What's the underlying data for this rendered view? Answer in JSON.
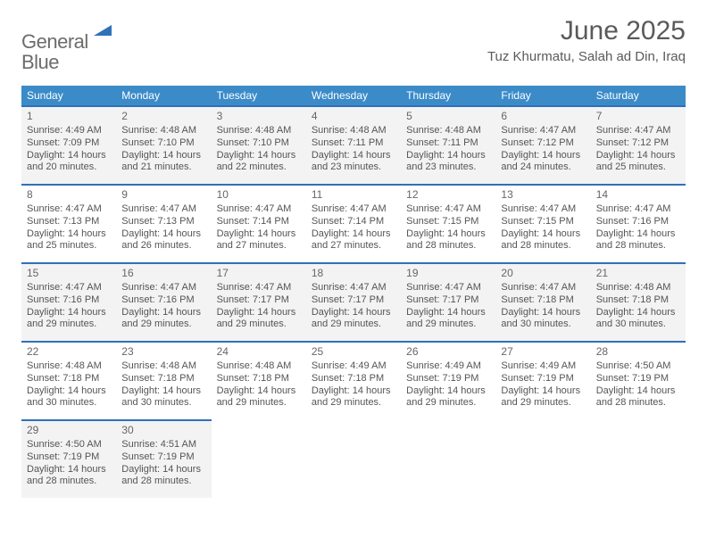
{
  "logo": {
    "word1": "General",
    "word2": "Blue"
  },
  "title": "June 2025",
  "location": "Tuz Khurmatu, Salah ad Din, Iraq",
  "colors": {
    "header_bg": "#3b8bc9",
    "rule": "#2f71b8",
    "shade": "#f3f3f3",
    "logo_gray": "#6c6c6c",
    "logo_blue": "#2f71b8",
    "text": "#555"
  },
  "weekdays": [
    "Sunday",
    "Monday",
    "Tuesday",
    "Wednesday",
    "Thursday",
    "Friday",
    "Saturday"
  ],
  "weeks": [
    {
      "shaded": true,
      "days": [
        {
          "n": "1",
          "sunrise": "4:49 AM",
          "sunset": "7:09 PM",
          "dl1": "Daylight: 14 hours",
          "dl2": "and 20 minutes."
        },
        {
          "n": "2",
          "sunrise": "4:48 AM",
          "sunset": "7:10 PM",
          "dl1": "Daylight: 14 hours",
          "dl2": "and 21 minutes."
        },
        {
          "n": "3",
          "sunrise": "4:48 AM",
          "sunset": "7:10 PM",
          "dl1": "Daylight: 14 hours",
          "dl2": "and 22 minutes."
        },
        {
          "n": "4",
          "sunrise": "4:48 AM",
          "sunset": "7:11 PM",
          "dl1": "Daylight: 14 hours",
          "dl2": "and 23 minutes."
        },
        {
          "n": "5",
          "sunrise": "4:48 AM",
          "sunset": "7:11 PM",
          "dl1": "Daylight: 14 hours",
          "dl2": "and 23 minutes."
        },
        {
          "n": "6",
          "sunrise": "4:47 AM",
          "sunset": "7:12 PM",
          "dl1": "Daylight: 14 hours",
          "dl2": "and 24 minutes."
        },
        {
          "n": "7",
          "sunrise": "4:47 AM",
          "sunset": "7:12 PM",
          "dl1": "Daylight: 14 hours",
          "dl2": "and 25 minutes."
        }
      ]
    },
    {
      "shaded": false,
      "days": [
        {
          "n": "8",
          "sunrise": "4:47 AM",
          "sunset": "7:13 PM",
          "dl1": "Daylight: 14 hours",
          "dl2": "and 25 minutes."
        },
        {
          "n": "9",
          "sunrise": "4:47 AM",
          "sunset": "7:13 PM",
          "dl1": "Daylight: 14 hours",
          "dl2": "and 26 minutes."
        },
        {
          "n": "10",
          "sunrise": "4:47 AM",
          "sunset": "7:14 PM",
          "dl1": "Daylight: 14 hours",
          "dl2": "and 27 minutes."
        },
        {
          "n": "11",
          "sunrise": "4:47 AM",
          "sunset": "7:14 PM",
          "dl1": "Daylight: 14 hours",
          "dl2": "and 27 minutes."
        },
        {
          "n": "12",
          "sunrise": "4:47 AM",
          "sunset": "7:15 PM",
          "dl1": "Daylight: 14 hours",
          "dl2": "and 28 minutes."
        },
        {
          "n": "13",
          "sunrise": "4:47 AM",
          "sunset": "7:15 PM",
          "dl1": "Daylight: 14 hours",
          "dl2": "and 28 minutes."
        },
        {
          "n": "14",
          "sunrise": "4:47 AM",
          "sunset": "7:16 PM",
          "dl1": "Daylight: 14 hours",
          "dl2": "and 28 minutes."
        }
      ]
    },
    {
      "shaded": true,
      "days": [
        {
          "n": "15",
          "sunrise": "4:47 AM",
          "sunset": "7:16 PM",
          "dl1": "Daylight: 14 hours",
          "dl2": "and 29 minutes."
        },
        {
          "n": "16",
          "sunrise": "4:47 AM",
          "sunset": "7:16 PM",
          "dl1": "Daylight: 14 hours",
          "dl2": "and 29 minutes."
        },
        {
          "n": "17",
          "sunrise": "4:47 AM",
          "sunset": "7:17 PM",
          "dl1": "Daylight: 14 hours",
          "dl2": "and 29 minutes."
        },
        {
          "n": "18",
          "sunrise": "4:47 AM",
          "sunset": "7:17 PM",
          "dl1": "Daylight: 14 hours",
          "dl2": "and 29 minutes."
        },
        {
          "n": "19",
          "sunrise": "4:47 AM",
          "sunset": "7:17 PM",
          "dl1": "Daylight: 14 hours",
          "dl2": "and 29 minutes."
        },
        {
          "n": "20",
          "sunrise": "4:47 AM",
          "sunset": "7:18 PM",
          "dl1": "Daylight: 14 hours",
          "dl2": "and 30 minutes."
        },
        {
          "n": "21",
          "sunrise": "4:48 AM",
          "sunset": "7:18 PM",
          "dl1": "Daylight: 14 hours",
          "dl2": "and 30 minutes."
        }
      ]
    },
    {
      "shaded": false,
      "days": [
        {
          "n": "22",
          "sunrise": "4:48 AM",
          "sunset": "7:18 PM",
          "dl1": "Daylight: 14 hours",
          "dl2": "and 30 minutes."
        },
        {
          "n": "23",
          "sunrise": "4:48 AM",
          "sunset": "7:18 PM",
          "dl1": "Daylight: 14 hours",
          "dl2": "and 30 minutes."
        },
        {
          "n": "24",
          "sunrise": "4:48 AM",
          "sunset": "7:18 PM",
          "dl1": "Daylight: 14 hours",
          "dl2": "and 29 minutes."
        },
        {
          "n": "25",
          "sunrise": "4:49 AM",
          "sunset": "7:18 PM",
          "dl1": "Daylight: 14 hours",
          "dl2": "and 29 minutes."
        },
        {
          "n": "26",
          "sunrise": "4:49 AM",
          "sunset": "7:19 PM",
          "dl1": "Daylight: 14 hours",
          "dl2": "and 29 minutes."
        },
        {
          "n": "27",
          "sunrise": "4:49 AM",
          "sunset": "7:19 PM",
          "dl1": "Daylight: 14 hours",
          "dl2": "and 29 minutes."
        },
        {
          "n": "28",
          "sunrise": "4:50 AM",
          "sunset": "7:19 PM",
          "dl1": "Daylight: 14 hours",
          "dl2": "and 28 minutes."
        }
      ]
    },
    {
      "shaded": true,
      "days": [
        {
          "n": "29",
          "sunrise": "4:50 AM",
          "sunset": "7:19 PM",
          "dl1": "Daylight: 14 hours",
          "dl2": "and 28 minutes."
        },
        {
          "n": "30",
          "sunrise": "4:51 AM",
          "sunset": "7:19 PM",
          "dl1": "Daylight: 14 hours",
          "dl2": "and 28 minutes."
        }
      ]
    }
  ],
  "labels": {
    "sunrise": "Sunrise: ",
    "sunset": "Sunset: "
  }
}
